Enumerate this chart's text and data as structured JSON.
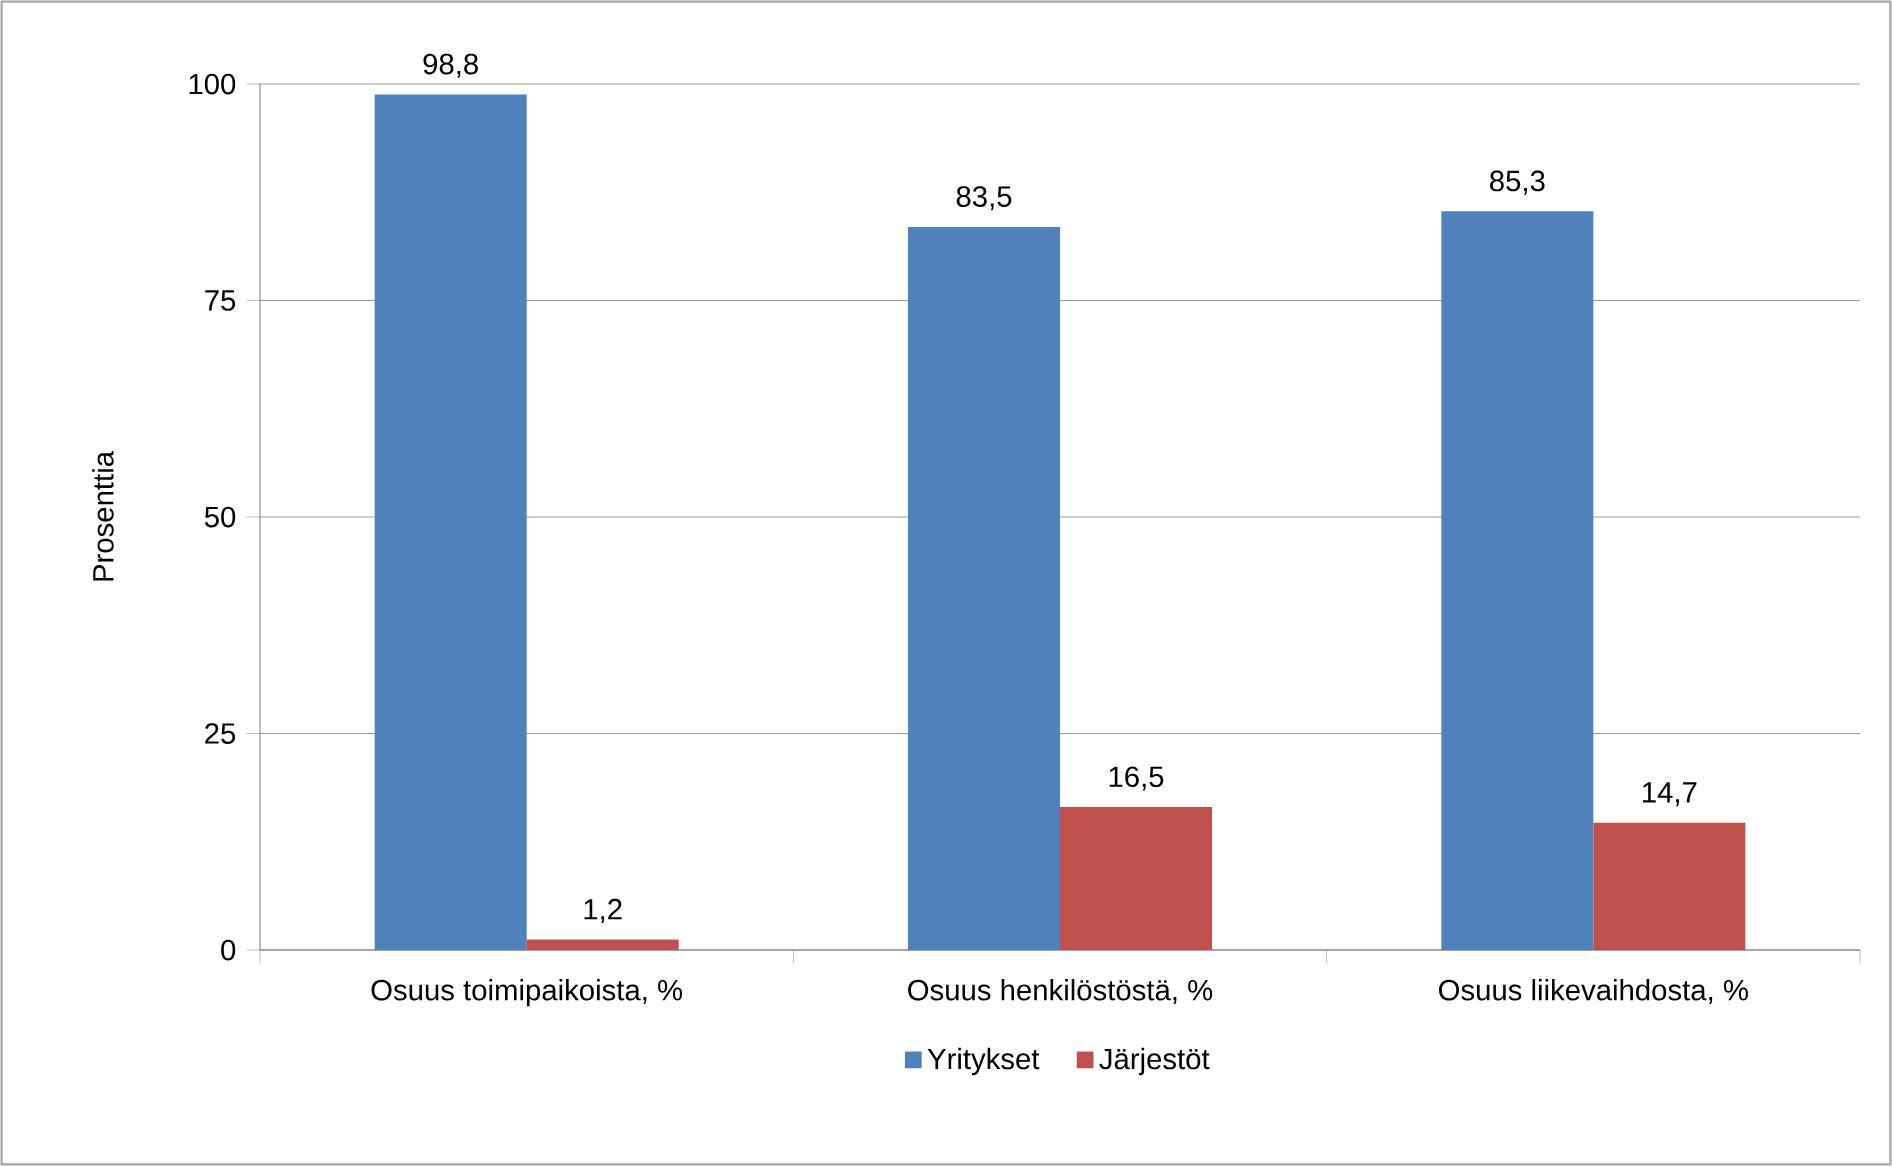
{
  "chart_data": {
    "type": "bar",
    "ylabel": "Prosenttia",
    "categories": [
      "Osuus toimipaikoista, %",
      "Osuus henkilöstöstä, %",
      "Osuus liikevaihdosta, %"
    ],
    "series": [
      {
        "name": "Yritykset",
        "color": "#4f81bd",
        "values": [
          98.8,
          83.5,
          85.3
        ],
        "value_labels": [
          "98,8",
          "83,5",
          "85,3"
        ]
      },
      {
        "name": "Järjestöt",
        "color": "#c0504d",
        "values": [
          1.2,
          16.5,
          14.7
        ],
        "value_labels": [
          "1,2",
          "16,5",
          "14,7"
        ]
      }
    ],
    "ylim": [
      0,
      100
    ],
    "yticks": [
      0,
      25,
      50,
      75,
      100
    ],
    "grid": "y",
    "legend": "bottom"
  }
}
